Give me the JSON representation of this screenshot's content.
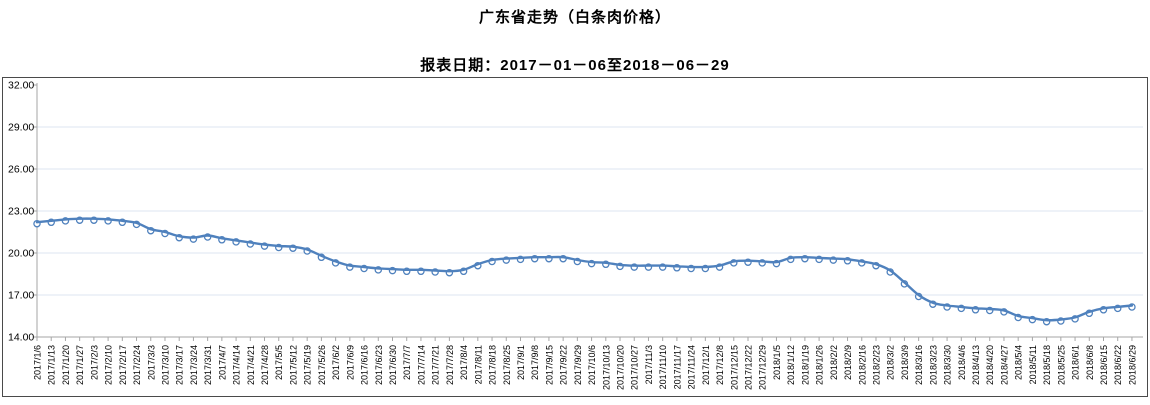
{
  "title": "广东省走势（白条肉价格）",
  "subtitle": "报表日期：2017－01－06至2018－06－29",
  "colors": {
    "line": "#4f81bd",
    "marker_fill": "#ffffff",
    "grid": "#dce6f2",
    "axis": "#a6a6a6",
    "frame": "#4a4a4a",
    "text": "#000000"
  },
  "chart_data": {
    "type": "line",
    "title": "广东省走势（白条肉价格）",
    "subtitle": "报表日期：2017－01－06至2018－06－29",
    "xlabel": "",
    "ylabel": "",
    "ylim": [
      14,
      32
    ],
    "y_ticks": [
      32,
      29,
      26,
      23,
      20,
      17,
      14
    ],
    "y_tick_labels": [
      "32.00",
      "29.00",
      "26.00",
      "23.00",
      "20.00",
      "17.00",
      "14.00"
    ],
    "grid": "horizontal",
    "legend": "none",
    "marker": "open-circle",
    "x": [
      "2017/1/6",
      "2017/1/13",
      "2017/1/20",
      "2017/1/27",
      "2017/2/3",
      "2017/2/10",
      "2017/2/17",
      "2017/2/24",
      "2017/3/3",
      "2017/3/10",
      "2017/3/17",
      "2017/3/24",
      "2017/3/31",
      "2017/4/7",
      "2017/4/14",
      "2017/4/21",
      "2017/4/28",
      "2017/5/5",
      "2017/5/12",
      "2017/5/19",
      "2017/5/26",
      "2017/6/2",
      "2017/6/9",
      "2017/6/16",
      "2017/6/23",
      "2017/6/30",
      "2017/7/7",
      "2017/7/14",
      "2017/7/21",
      "2017/7/28",
      "2017/8/4",
      "2017/8/11",
      "2017/8/18",
      "2017/8/25",
      "2017/9/1",
      "2017/9/8",
      "2017/9/15",
      "2017/9/22",
      "2017/9/29",
      "2017/10/6",
      "2017/10/13",
      "2017/10/20",
      "2017/10/27",
      "2017/11/3",
      "2017/11/10",
      "2017/11/17",
      "2017/11/24",
      "2017/12/1",
      "2017/12/8",
      "2017/12/15",
      "2017/12/22",
      "2017/12/29",
      "2018/1/5",
      "2018/1/12",
      "2018/1/19",
      "2018/1/26",
      "2018/2/2",
      "2018/2/9",
      "2018/2/16",
      "2018/2/23",
      "2018/3/2",
      "2018/3/9",
      "2018/3/16",
      "2018/3/23",
      "2018/3/30",
      "2018/4/6",
      "2018/4/13",
      "2018/4/20",
      "2018/4/27",
      "2018/5/4",
      "2018/5/11",
      "2018/5/18",
      "2018/5/25",
      "2018/6/1",
      "2018/6/8",
      "2018/6/15",
      "2018/6/22",
      "2018/6/29"
    ],
    "series": [
      {
        "name": "白条肉价格",
        "values": [
          22.2,
          22.3,
          22.4,
          22.45,
          22.45,
          22.4,
          22.3,
          22.15,
          21.7,
          21.5,
          21.2,
          21.1,
          21.25,
          21.05,
          20.9,
          20.75,
          20.6,
          20.5,
          20.45,
          20.25,
          19.8,
          19.4,
          19.1,
          19.0,
          18.9,
          18.85,
          18.8,
          18.8,
          18.75,
          18.7,
          18.8,
          19.2,
          19.5,
          19.6,
          19.65,
          19.7,
          19.7,
          19.7,
          19.5,
          19.35,
          19.3,
          19.15,
          19.1,
          19.1,
          19.1,
          19.05,
          19.0,
          19.0,
          19.1,
          19.4,
          19.45,
          19.4,
          19.35,
          19.65,
          19.7,
          19.65,
          19.6,
          19.55,
          19.4,
          19.2,
          18.75,
          17.9,
          17.0,
          16.45,
          16.25,
          16.15,
          16.05,
          16.0,
          15.9,
          15.5,
          15.35,
          15.2,
          15.25,
          15.4,
          15.8,
          16.05,
          16.15,
          16.25
        ]
      }
    ]
  }
}
